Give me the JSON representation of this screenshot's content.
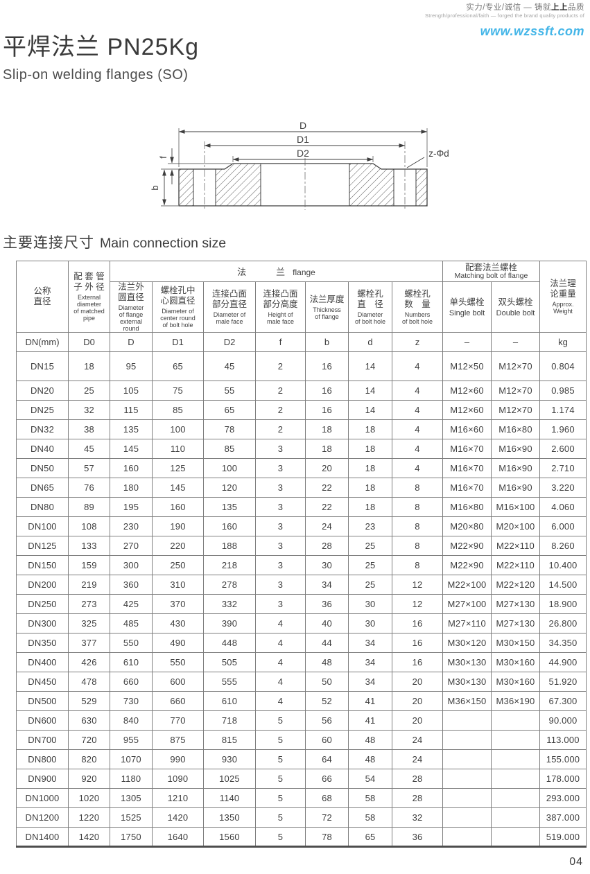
{
  "header": {
    "slogan_cn_pre": "实力/专业/诚信 — 铸就",
    "slogan_cn_brand": "上上",
    "slogan_cn_post": "品质",
    "slogan_en": "Strength/professional/faith — forged the brand quality products of",
    "website": "www.wzssft.com",
    "title_cn": "平焊法兰 PN25Kg",
    "title_en": "Slip-on welding flanges (SO)"
  },
  "colors": {
    "website_blue": "#45b6e8"
  },
  "diagram": {
    "labels": {
      "d": "D",
      "d1": "D1",
      "d2": "D2",
      "f": "f",
      "b": "b",
      "bolt_note": "z-Φd"
    }
  },
  "section": {
    "title_cn": "主要连接尺寸",
    "title_en": "Main connection size"
  },
  "table": {
    "group_flange": {
      "cn": "法　　　兰",
      "en": "flange"
    },
    "group_bolt": {
      "cn": "配套法兰螺栓",
      "en": "Matching bolt of flange"
    },
    "columns": [
      {
        "cn": "公称\n直径",
        "en": "",
        "unit": "DN(mm)"
      },
      {
        "cn": "配 套 管\n子 外 径",
        "en": "External\ndiameter\nof matched\npipe",
        "unit": "D0"
      },
      {
        "cn": "法兰外\n圆直径",
        "en": "Diameter\nof flange\nexternal\nround",
        "unit": "D"
      },
      {
        "cn": "螺栓孔中\n心圆直径",
        "en": "Diameter of\ncenter round\nof bolt hole",
        "unit": "D1"
      },
      {
        "cn": "连接凸面\n部分直径",
        "en": "Diameter of\nmale face",
        "unit": "D2"
      },
      {
        "cn": "连接凸面\n部分高度",
        "en": "Height of\nmale face",
        "unit": "f"
      },
      {
        "cn": "法兰厚度",
        "en": "Thickness\nof flange",
        "unit": "b"
      },
      {
        "cn": "螺栓孔\n直　径",
        "en": "Diameter\nof bolt hole",
        "unit": "d"
      },
      {
        "cn": "螺栓孔\n数　量",
        "en": "Numbers\nof bolt hole",
        "unit": "z"
      },
      {
        "cn": "单头螺栓",
        "en": "Single bolt",
        "unit": "–"
      },
      {
        "cn": "双头螺栓",
        "en": "Double bolt",
        "unit": "–"
      },
      {
        "cn": "法兰理\n论重量",
        "en": "Approx.\nWeight",
        "unit": "kg"
      }
    ],
    "rows": [
      [
        "DN15",
        "18",
        "95",
        "65",
        "45",
        "2",
        "16",
        "14",
        "4",
        "M12×50",
        "M12×70",
        "0.804"
      ],
      [
        "DN20",
        "25",
        "105",
        "75",
        "55",
        "2",
        "16",
        "14",
        "4",
        "M12×60",
        "M12×70",
        "0.985"
      ],
      [
        "DN25",
        "32",
        "115",
        "85",
        "65",
        "2",
        "16",
        "14",
        "4",
        "M12×60",
        "M12×70",
        "1.174"
      ],
      [
        "DN32",
        "38",
        "135",
        "100",
        "78",
        "2",
        "18",
        "18",
        "4",
        "M16×60",
        "M16×80",
        "1.960"
      ],
      [
        "DN40",
        "45",
        "145",
        "110",
        "85",
        "3",
        "18",
        "18",
        "4",
        "M16×70",
        "M16×90",
        "2.600"
      ],
      [
        "DN50",
        "57",
        "160",
        "125",
        "100",
        "3",
        "20",
        "18",
        "4",
        "M16×70",
        "M16×90",
        "2.710"
      ],
      [
        "DN65",
        "76",
        "180",
        "145",
        "120",
        "3",
        "22",
        "18",
        "8",
        "M16×70",
        "M16×90",
        "3.220"
      ],
      [
        "DN80",
        "89",
        "195",
        "160",
        "135",
        "3",
        "22",
        "18",
        "8",
        "M16×80",
        "M16×100",
        "4.060"
      ],
      [
        "DN100",
        "108",
        "230",
        "190",
        "160",
        "3",
        "24",
        "23",
        "8",
        "M20×80",
        "M20×100",
        "6.000"
      ],
      [
        "DN125",
        "133",
        "270",
        "220",
        "188",
        "3",
        "28",
        "25",
        "8",
        "M22×90",
        "M22×110",
        "8.260"
      ],
      [
        "DN150",
        "159",
        "300",
        "250",
        "218",
        "3",
        "30",
        "25",
        "8",
        "M22×90",
        "M22×110",
        "10.400"
      ],
      [
        "DN200",
        "219",
        "360",
        "310",
        "278",
        "3",
        "34",
        "25",
        "12",
        "M22×100",
        "M22×120",
        "14.500"
      ],
      [
        "DN250",
        "273",
        "425",
        "370",
        "332",
        "3",
        "36",
        "30",
        "12",
        "M27×100",
        "M27×130",
        "18.900"
      ],
      [
        "DN300",
        "325",
        "485",
        "430",
        "390",
        "4",
        "40",
        "30",
        "16",
        "M27×110",
        "M27×130",
        "26.800"
      ],
      [
        "DN350",
        "377",
        "550",
        "490",
        "448",
        "4",
        "44",
        "34",
        "16",
        "M30×120",
        "M30×150",
        "34.350"
      ],
      [
        "DN400",
        "426",
        "610",
        "550",
        "505",
        "4",
        "48",
        "34",
        "16",
        "M30×130",
        "M30×160",
        "44.900"
      ],
      [
        "DN450",
        "478",
        "660",
        "600",
        "555",
        "4",
        "50",
        "34",
        "20",
        "M30×130",
        "M30×160",
        "51.920"
      ],
      [
        "DN500",
        "529",
        "730",
        "660",
        "610",
        "4",
        "52",
        "41",
        "20",
        "M36×150",
        "M36×190",
        "67.300"
      ],
      [
        "DN600",
        "630",
        "840",
        "770",
        "718",
        "5",
        "56",
        "41",
        "20",
        "",
        "",
        "90.000"
      ],
      [
        "DN700",
        "720",
        "955",
        "875",
        "815",
        "5",
        "60",
        "48",
        "24",
        "",
        "",
        "113.000"
      ],
      [
        "DN800",
        "820",
        "1070",
        "990",
        "930",
        "5",
        "64",
        "48",
        "24",
        "",
        "",
        "155.000"
      ],
      [
        "DN900",
        "920",
        "1180",
        "1090",
        "1025",
        "5",
        "66",
        "54",
        "28",
        "",
        "",
        "178.000"
      ],
      [
        "DN1000",
        "1020",
        "1305",
        "1210",
        "1140",
        "5",
        "68",
        "58",
        "28",
        "",
        "",
        "293.000"
      ],
      [
        "DN1200",
        "1220",
        "1525",
        "1420",
        "1350",
        "5",
        "72",
        "58",
        "32",
        "",
        "",
        "387.000"
      ],
      [
        "DN1400",
        "1420",
        "1750",
        "1640",
        "1560",
        "5",
        "78",
        "65",
        "36",
        "",
        "",
        "519.000"
      ]
    ]
  },
  "footer": {
    "page": "04"
  }
}
